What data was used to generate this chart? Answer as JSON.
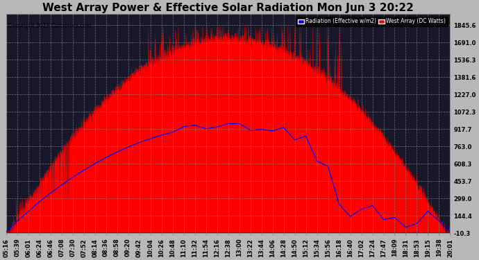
{
  "title": "West Array Power & Effective Solar Radiation Mon Jun 3 20:22",
  "copyright": "Copyright 2013 Cartronics.com",
  "legend_items": [
    "Radiation (Effective w/m2)",
    "West Array (DC Watts)"
  ],
  "legend_colors": [
    "#0000ff",
    "#ff0000"
  ],
  "yticks": [
    -10.3,
    144.4,
    299.0,
    453.7,
    608.3,
    763.0,
    917.7,
    1072.3,
    1227.0,
    1381.6,
    1536.3,
    1691.0,
    1845.6
  ],
  "ymin": -10.3,
  "ymax": 1945.0,
  "fig_bg": "#c8c8c8",
  "plot_bg": "#1a1a2e",
  "grid_color": "#555577",
  "title_fontsize": 11,
  "tick_fontsize": 6,
  "time_labels": [
    "05:16",
    "05:39",
    "06:01",
    "06:24",
    "06:46",
    "07:08",
    "07:30",
    "07:52",
    "08:14",
    "08:36",
    "08:58",
    "09:20",
    "09:42",
    "10:04",
    "10:26",
    "10:48",
    "11:10",
    "11:32",
    "11:54",
    "12:16",
    "12:38",
    "13:00",
    "13:22",
    "13:44",
    "14:06",
    "14:28",
    "14:50",
    "15:12",
    "15:34",
    "15:56",
    "16:18",
    "16:40",
    "17:02",
    "17:24",
    "17:47",
    "18:09",
    "18:31",
    "18:53",
    "19:15",
    "19:38",
    "20:01"
  ]
}
